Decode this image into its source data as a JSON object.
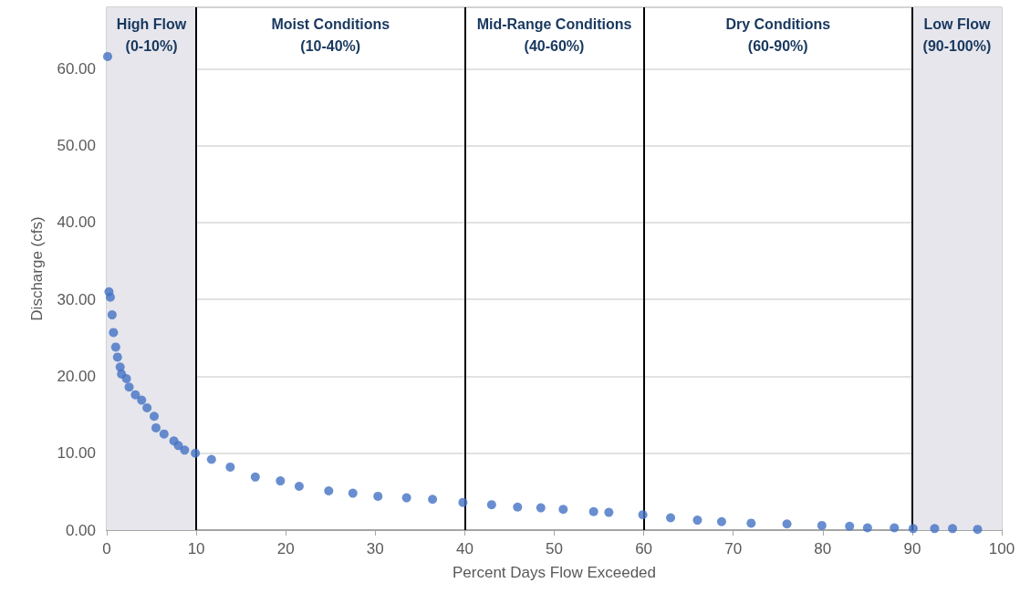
{
  "chart_data": {
    "type": "scatter",
    "xlabel": "Percent Days Flow Exceeded",
    "ylabel": "Discharge (cfs)",
    "xlim": [
      0,
      100
    ],
    "xticks": [
      0,
      10,
      20,
      30,
      40,
      50,
      60,
      70,
      80,
      90,
      100
    ],
    "ylim": [
      0,
      68
    ],
    "yticks": [
      {
        "value": 0,
        "label": "0.00"
      },
      {
        "value": 10,
        "label": "10.00"
      },
      {
        "value": 20,
        "label": "20.00"
      },
      {
        "value": 30,
        "label": "30.00"
      },
      {
        "value": 40,
        "label": "40.00"
      },
      {
        "value": 50,
        "label": "50.00"
      },
      {
        "value": 60,
        "label": "60.00"
      }
    ],
    "grid": "y",
    "marker": "circle",
    "series": [
      {
        "color": "#4472c4",
        "x": [
          0.1,
          0.25,
          0.4,
          0.6,
          0.75,
          1.0,
          1.2,
          1.5,
          1.65,
          2.2,
          2.5,
          3.2,
          3.9,
          4.5,
          5.3,
          5.5,
          6.4,
          7.5,
          8.0,
          8.7,
          9.9,
          11.7,
          13.8,
          16.6,
          19.4,
          21.5,
          24.8,
          27.5,
          30.3,
          33.5,
          36.4,
          39.8,
          43,
          45.9,
          48.5,
          51.0,
          54.4,
          56.1,
          59.9,
          63,
          66,
          68.7,
          72,
          76,
          79.9,
          83,
          85,
          88,
          90.1,
          92.5,
          94.5,
          97.3
        ],
        "values": [
          61.6,
          31.0,
          30.3,
          28.0,
          25.7,
          23.8,
          22.5,
          21.2,
          20.3,
          19.7,
          18.6,
          17.6,
          16.9,
          15.9,
          14.8,
          13.3,
          12.5,
          11.6,
          11.0,
          10.4,
          10.0,
          9.2,
          8.2,
          6.9,
          6.4,
          5.7,
          5.1,
          4.8,
          4.4,
          4.2,
          4.0,
          3.6,
          3.3,
          3.0,
          2.9,
          2.7,
          2.4,
          2.3,
          2.0,
          1.6,
          1.3,
          1.1,
          0.9,
          0.8,
          0.6,
          0.5,
          0.3,
          0.3,
          0.2,
          0.2,
          0.2,
          0.1
        ]
      }
    ],
    "bands": [
      {
        "axis": "x",
        "from": 0,
        "to": 10,
        "label": "High Flow\n(0-10%)",
        "color": "#e6e6ec"
      },
      {
        "axis": "x",
        "from": 90,
        "to": 100,
        "label": "Low Flow\n(90-100%)",
        "color": "#e6e6ec"
      }
    ],
    "annotations": [
      "Moist Conditions\n(10-40%)",
      "Mid-Range Conditions\n(40-60%)",
      "Dry Conditions\n(60-90%)"
    ],
    "ref_lines": [
      {
        "axis": "x",
        "value": 10,
        "color": "#000000"
      },
      {
        "axis": "x",
        "value": 40,
        "color": "#000000"
      },
      {
        "axis": "x",
        "value": 60,
        "color": "#000000"
      },
      {
        "axis": "x",
        "value": 90,
        "color": "#000000"
      }
    ]
  }
}
